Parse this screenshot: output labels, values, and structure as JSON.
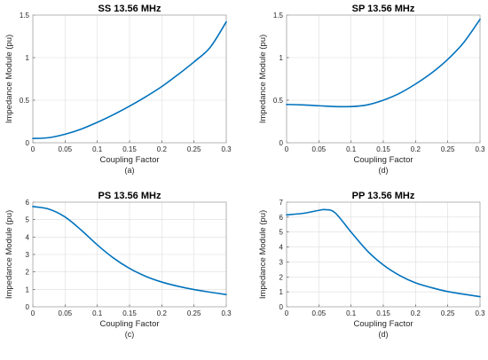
{
  "chart_data": [
    {
      "type": "line",
      "title": "SS 13.56 MHz",
      "xlabel": "Coupling Factor",
      "ylabel": "Impedance Module (pu)",
      "caption": "(a)",
      "xlim": [
        0,
        0.3
      ],
      "ylim": [
        0,
        1.5
      ],
      "xticks": [
        "0",
        "0.05",
        "0.1",
        "0.15",
        "0.2",
        "0.25",
        "0.3"
      ],
      "yticks": [
        "0",
        "0.5",
        "1",
        "1.5"
      ],
      "grid": true,
      "color": "#0072BD",
      "x": [
        0,
        0.025,
        0.05,
        0.075,
        0.1,
        0.125,
        0.15,
        0.175,
        0.2,
        0.225,
        0.25,
        0.275,
        0.3
      ],
      "y": [
        0.05,
        0.06,
        0.1,
        0.16,
        0.24,
        0.33,
        0.43,
        0.54,
        0.66,
        0.8,
        0.95,
        1.12,
        1.42
      ]
    },
    {
      "type": "line",
      "title": "SP 13.56 MHz",
      "xlabel": "Coupling Factor",
      "ylabel": "Impedance Module (pu)",
      "caption": "(d)",
      "xlim": [
        0,
        0.3
      ],
      "ylim": [
        0,
        1.5
      ],
      "xticks": [
        "0",
        "0.05",
        "0.1",
        "0.15",
        "0.2",
        "0.25",
        "0.3"
      ],
      "yticks": [
        "0",
        "0.5",
        "1",
        "1.5"
      ],
      "grid": true,
      "color": "#0072BD",
      "x": [
        0,
        0.025,
        0.05,
        0.075,
        0.1,
        0.125,
        0.15,
        0.175,
        0.2,
        0.225,
        0.25,
        0.275,
        0.3
      ],
      "y": [
        0.45,
        0.445,
        0.435,
        0.425,
        0.425,
        0.445,
        0.5,
        0.58,
        0.69,
        0.82,
        0.98,
        1.18,
        1.45
      ]
    },
    {
      "type": "line",
      "title": "PS 13.56 MHz",
      "xlabel": "Coupling Factor",
      "ylabel": "Impedance Module (pu)",
      "caption": "(c)",
      "xlim": [
        0,
        0.3
      ],
      "ylim": [
        0,
        6
      ],
      "xticks": [
        "0",
        "0.05",
        "0.1",
        "0.15",
        "0.2",
        "0.25",
        "0.3"
      ],
      "yticks": [
        "0",
        "1",
        "2",
        "3",
        "4",
        "5",
        "6"
      ],
      "grid": true,
      "color": "#0072BD",
      "x": [
        0,
        0.025,
        0.05,
        0.075,
        0.1,
        0.125,
        0.15,
        0.175,
        0.2,
        0.225,
        0.25,
        0.275,
        0.3
      ],
      "y": [
        5.75,
        5.6,
        5.15,
        4.4,
        3.55,
        2.8,
        2.2,
        1.75,
        1.42,
        1.18,
        0.99,
        0.84,
        0.7
      ]
    },
    {
      "type": "line",
      "title": "PP 13.56 MHz",
      "xlabel": "Coupling Factor",
      "ylabel": "Impedance Module (pu)",
      "caption": "(d)",
      "xlim": [
        0,
        0.3
      ],
      "ylim": [
        0,
        7
      ],
      "xticks": [
        "0",
        "0.05",
        "0.1",
        "0.15",
        "0.2",
        "0.25",
        "0.3"
      ],
      "yticks": [
        "0",
        "1",
        "2",
        "3",
        "4",
        "5",
        "6",
        "7"
      ],
      "grid": true,
      "color": "#0072BD",
      "x": [
        0,
        0.025,
        0.05,
        0.06,
        0.075,
        0.1,
        0.125,
        0.15,
        0.175,
        0.2,
        0.225,
        0.25,
        0.275,
        0.3
      ],
      "y": [
        6.15,
        6.25,
        6.45,
        6.5,
        6.3,
        5.0,
        3.75,
        2.8,
        2.1,
        1.6,
        1.28,
        1.02,
        0.84,
        0.68
      ]
    }
  ]
}
